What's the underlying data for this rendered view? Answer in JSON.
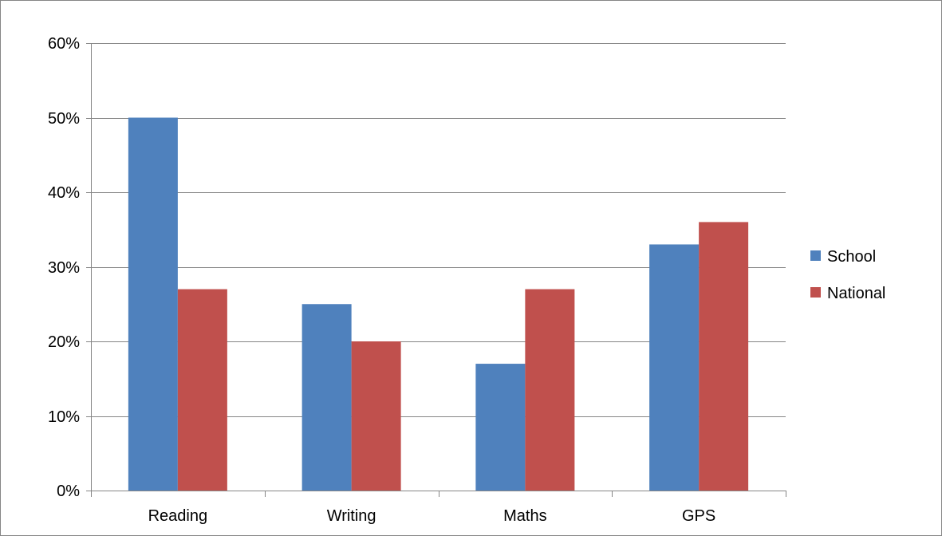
{
  "chart_data": {
    "type": "bar",
    "title": "",
    "xlabel": "",
    "ylabel": "",
    "categories": [
      "Reading",
      "Writing",
      "Maths",
      "GPS"
    ],
    "series": [
      {
        "name": "School",
        "values": [
          50,
          25,
          17,
          33
        ],
        "color": "#4f81bd"
      },
      {
        "name": "National",
        "values": [
          27,
          20,
          27,
          36
        ],
        "color": "#c0504d"
      }
    ],
    "ylim": [
      0,
      60
    ],
    "yticks": [
      0,
      10,
      20,
      30,
      40,
      50,
      60
    ],
    "ytick_labels": [
      "0%",
      "10%",
      "20%",
      "30%",
      "40%",
      "50%",
      "60%"
    ],
    "grid": true,
    "legend_position": "right",
    "gridline_color": "#868686",
    "border_color": "#868686"
  }
}
